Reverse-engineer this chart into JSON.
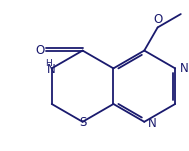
{
  "bg_color": "#ffffff",
  "line_color": "#1a1a6e",
  "font_size": 7.5,
  "line_width": 1.3,
  "figsize": [
    1.89,
    1.51
  ],
  "dpi": 100,
  "xlim": [
    -2.2,
    2.8
  ],
  "ylim": [
    -1.8,
    2.4
  ]
}
